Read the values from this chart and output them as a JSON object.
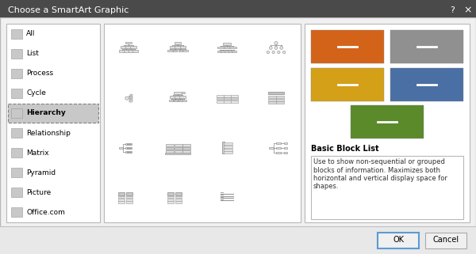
{
  "title": "Choose a SmartArt Graphic",
  "title_bar_color": "#4a4a4a",
  "title_bar_text_color": "#ffffff",
  "dialog_bg": "#f0f0f0",
  "dialog_border": "#b0b0b0",
  "panel_bg": "#ffffff",
  "menu_items": [
    {
      "text": "All",
      "selected": false
    },
    {
      "text": "List",
      "selected": false
    },
    {
      "text": "Process",
      "selected": false
    },
    {
      "text": "Cycle",
      "selected": false
    },
    {
      "text": "Hierarchy",
      "selected": true
    },
    {
      "text": "Relationship",
      "selected": false
    },
    {
      "text": "Matrix",
      "selected": false
    },
    {
      "text": "Pyramid",
      "selected": false
    },
    {
      "text": "Picture",
      "selected": false
    },
    {
      "text": "Office.com",
      "selected": false
    }
  ],
  "selected_item_bg": "#c8c8c8",
  "selected_item_border": "#808080",
  "menu_text_color": "#333333",
  "color_blocks": [
    {
      "color": "#d4631a"
    },
    {
      "color": "#909090"
    },
    {
      "color": "#d4a017"
    },
    {
      "color": "#4a6fa5"
    },
    {
      "color": "#5a8a2a"
    }
  ],
  "preview_title": "Basic Block List",
  "preview_text": "Use to show non-sequential or grouped\nblocks of information. Maximizes both\nhorizontal and vertical display space for\nshapes.",
  "ok_btn_text": "OK",
  "cancel_btn_text": "Cancel",
  "btn_bg": "#f0f0f0",
  "btn_border_ok": "#5b9bd5",
  "btn_border_cancel": "#aaaaaa",
  "bottom_bar_color": "#e8e8e8",
  "separator_color": "#c0c0c0",
  "panel_border": "#b8b8b8"
}
